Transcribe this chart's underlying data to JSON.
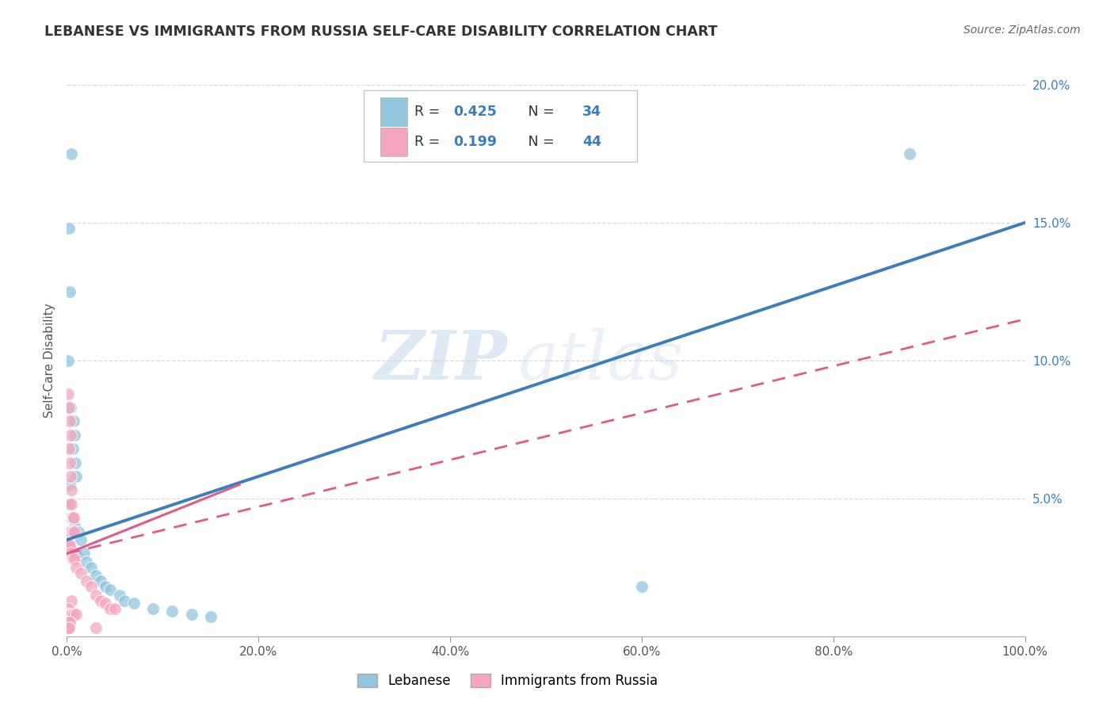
{
  "title": "LEBANESE VS IMMIGRANTS FROM RUSSIA SELF-CARE DISABILITY CORRELATION CHART",
  "source": "Source: ZipAtlas.com",
  "ylabel": "Self-Care Disability",
  "xlim": [
    0,
    1.0
  ],
  "ylim": [
    0,
    0.2
  ],
  "xticks": [
    0.0,
    0.2,
    0.4,
    0.6,
    0.8,
    1.0
  ],
  "xticklabels": [
    "0.0%",
    "20.0%",
    "40.0%",
    "60.0%",
    "80.0%",
    "100.0%"
  ],
  "yticks": [
    0.0,
    0.05,
    0.1,
    0.15,
    0.2
  ],
  "yticklabels": [
    "",
    "5.0%",
    "10.0%",
    "15.0%",
    "20.0%"
  ],
  "blue_color": "#92c5de",
  "pink_color": "#f4a6c0",
  "blue_line_color": "#3a7ebf",
  "pink_line_color": "#e05a8a",
  "blue_r": "0.425",
  "blue_n": "34",
  "pink_r": "0.199",
  "pink_n": "44",
  "blue_scatter": [
    [
      0.002,
      0.148
    ],
    [
      0.005,
      0.175
    ],
    [
      0.003,
      0.125
    ],
    [
      0.001,
      0.1
    ],
    [
      0.004,
      0.083
    ],
    [
      0.007,
      0.078
    ],
    [
      0.008,
      0.073
    ],
    [
      0.006,
      0.068
    ],
    [
      0.009,
      0.063
    ],
    [
      0.01,
      0.058
    ],
    [
      0.003,
      0.055
    ],
    [
      0.002,
      0.048
    ],
    [
      0.005,
      0.043
    ],
    [
      0.008,
      0.04
    ],
    [
      0.012,
      0.038
    ],
    [
      0.015,
      0.035
    ],
    [
      0.01,
      0.03
    ],
    [
      0.018,
      0.03
    ],
    [
      0.02,
      0.027
    ],
    [
      0.025,
      0.025
    ],
    [
      0.03,
      0.022
    ],
    [
      0.035,
      0.02
    ],
    [
      0.04,
      0.018
    ],
    [
      0.045,
      0.017
    ],
    [
      0.055,
      0.015
    ],
    [
      0.06,
      0.013
    ],
    [
      0.07,
      0.012
    ],
    [
      0.09,
      0.01
    ],
    [
      0.11,
      0.009
    ],
    [
      0.13,
      0.008
    ],
    [
      0.15,
      0.007
    ],
    [
      0.6,
      0.018
    ],
    [
      0.88,
      0.175
    ],
    [
      0.001,
      0.003
    ]
  ],
  "pink_scatter": [
    [
      0.001,
      0.088
    ],
    [
      0.002,
      0.083
    ],
    [
      0.003,
      0.078
    ],
    [
      0.004,
      0.073
    ],
    [
      0.002,
      0.068
    ],
    [
      0.003,
      0.063
    ],
    [
      0.004,
      0.058
    ],
    [
      0.005,
      0.053
    ],
    [
      0.002,
      0.048
    ],
    [
      0.005,
      0.048
    ],
    [
      0.006,
      0.043
    ],
    [
      0.007,
      0.043
    ],
    [
      0.003,
      0.038
    ],
    [
      0.004,
      0.038
    ],
    [
      0.006,
      0.038
    ],
    [
      0.008,
      0.038
    ],
    [
      0.001,
      0.033
    ],
    [
      0.002,
      0.033
    ],
    [
      0.003,
      0.033
    ],
    [
      0.004,
      0.03
    ],
    [
      0.006,
      0.028
    ],
    [
      0.008,
      0.028
    ],
    [
      0.01,
      0.025
    ],
    [
      0.015,
      0.023
    ],
    [
      0.02,
      0.02
    ],
    [
      0.025,
      0.018
    ],
    [
      0.03,
      0.015
    ],
    [
      0.035,
      0.013
    ],
    [
      0.005,
      0.013
    ],
    [
      0.04,
      0.012
    ],
    [
      0.045,
      0.01
    ],
    [
      0.05,
      0.01
    ],
    [
      0.001,
      0.01
    ],
    [
      0.002,
      0.008
    ],
    [
      0.003,
      0.008
    ],
    [
      0.005,
      0.008
    ],
    [
      0.007,
      0.008
    ],
    [
      0.01,
      0.008
    ],
    [
      0.001,
      0.005
    ],
    [
      0.002,
      0.005
    ],
    [
      0.003,
      0.005
    ],
    [
      0.001,
      0.003
    ],
    [
      0.002,
      0.003
    ],
    [
      0.03,
      0.003
    ]
  ],
  "watermark": "ZIPatlas",
  "background_color": "#ffffff",
  "grid_color": "#d0d0d0",
  "title_color": "#333333",
  "source_color": "#666666",
  "tick_color_y": "#3a7ebf",
  "tick_color_x": "#555555"
}
